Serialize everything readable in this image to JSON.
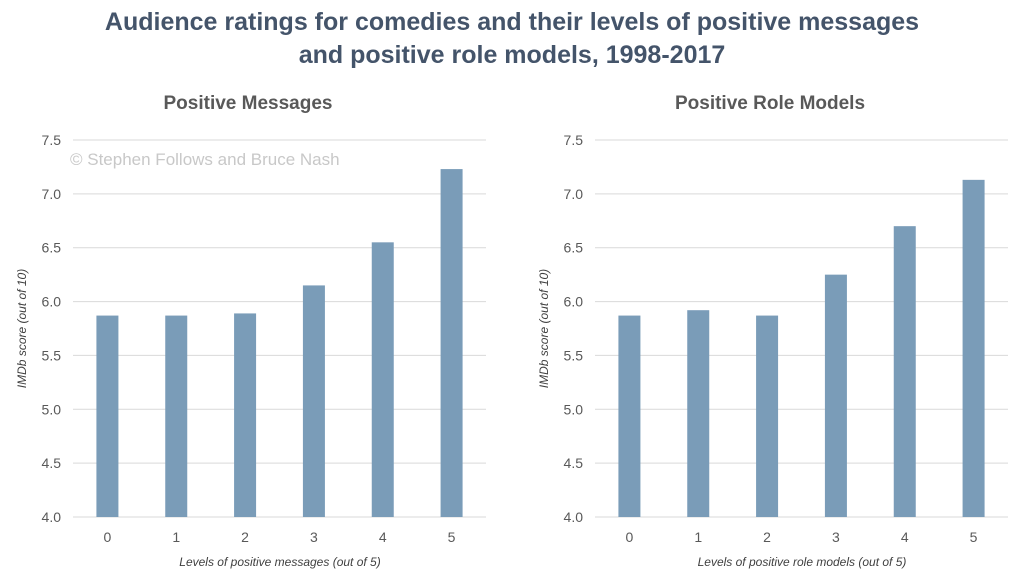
{
  "title_lines": [
    "Audience ratings for comedies and their levels of positive messages",
    "and positive role models, 1998-2017"
  ],
  "watermark": "© Stephen Follows and Bruce Nash",
  "colors": {
    "bar": "#7a9cb8",
    "title": "#44546a"
  },
  "chart_data": [
    {
      "type": "bar",
      "title": "Positive Messages",
      "xlabel": "Levels of positive messages (out of 5)",
      "ylabel": "IMDb score (out of 10)",
      "categories": [
        "0",
        "1",
        "2",
        "3",
        "4",
        "5"
      ],
      "values": [
        5.87,
        5.87,
        5.89,
        6.15,
        6.55,
        7.23
      ],
      "ylim": [
        4.0,
        7.5
      ],
      "yticks": [
        "4.0",
        "4.5",
        "5.0",
        "5.5",
        "6.0",
        "6.5",
        "7.0",
        "7.5"
      ],
      "grid": true,
      "legend": "none"
    },
    {
      "type": "bar",
      "title": "Positive Role Models",
      "xlabel": "Levels of positive role models (out of 5)",
      "ylabel": "IMDb score (out of 10)",
      "categories": [
        "0",
        "1",
        "2",
        "3",
        "4",
        "5"
      ],
      "values": [
        5.87,
        5.92,
        5.87,
        6.25,
        6.7,
        7.13
      ],
      "ylim": [
        4.0,
        7.5
      ],
      "yticks": [
        "4.0",
        "4.5",
        "5.0",
        "5.5",
        "6.0",
        "6.5",
        "7.0",
        "7.5"
      ],
      "grid": true,
      "legend": "none"
    }
  ]
}
